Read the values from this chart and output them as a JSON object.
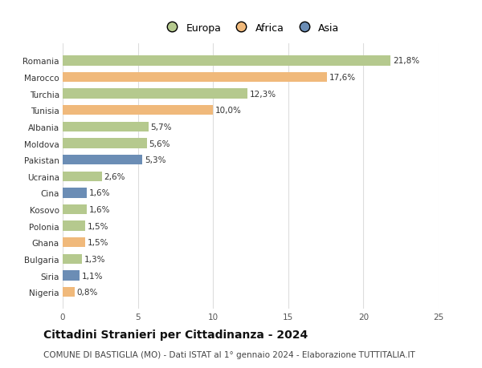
{
  "countries": [
    "Nigeria",
    "Siria",
    "Bulgaria",
    "Ghana",
    "Polonia",
    "Kosovo",
    "Cina",
    "Ucraina",
    "Pakistan",
    "Moldova",
    "Albania",
    "Tunisia",
    "Turchia",
    "Marocco",
    "Romania"
  ],
  "values": [
    0.8,
    1.1,
    1.3,
    1.5,
    1.5,
    1.6,
    1.6,
    2.6,
    5.3,
    5.6,
    5.7,
    10.0,
    12.3,
    17.6,
    21.8
  ],
  "labels": [
    "0,8%",
    "1,1%",
    "1,3%",
    "1,5%",
    "1,5%",
    "1,6%",
    "1,6%",
    "2,6%",
    "5,3%",
    "5,6%",
    "5,7%",
    "10,0%",
    "12,3%",
    "17,6%",
    "21,8%"
  ],
  "continent": [
    "Africa",
    "Asia",
    "Europa",
    "Africa",
    "Europa",
    "Europa",
    "Asia",
    "Europa",
    "Asia",
    "Europa",
    "Europa",
    "Africa",
    "Europa",
    "Africa",
    "Europa"
  ],
  "colors": {
    "Europa": "#b5c98e",
    "Africa": "#f0b97b",
    "Asia": "#6b8db5"
  },
  "legend_labels": [
    "Europa",
    "Africa",
    "Asia"
  ],
  "legend_colors": [
    "#b5c98e",
    "#f0b97b",
    "#6b8db5"
  ],
  "xlim": [
    0,
    25
  ],
  "xticks": [
    0,
    5,
    10,
    15,
    20,
    25
  ],
  "title": "Cittadini Stranieri per Cittadinanza - 2024",
  "subtitle": "COMUNE DI BASTIGLIA (MO) - Dati ISTAT al 1° gennaio 2024 - Elaborazione TUTTITALIA.IT",
  "background_color": "#ffffff",
  "grid_color": "#dddddd",
  "bar_height": 0.6,
  "label_fontsize": 7.5,
  "tick_fontsize": 7.5,
  "ylabel_fontsize": 7.5,
  "title_fontsize": 10,
  "subtitle_fontsize": 7.5
}
